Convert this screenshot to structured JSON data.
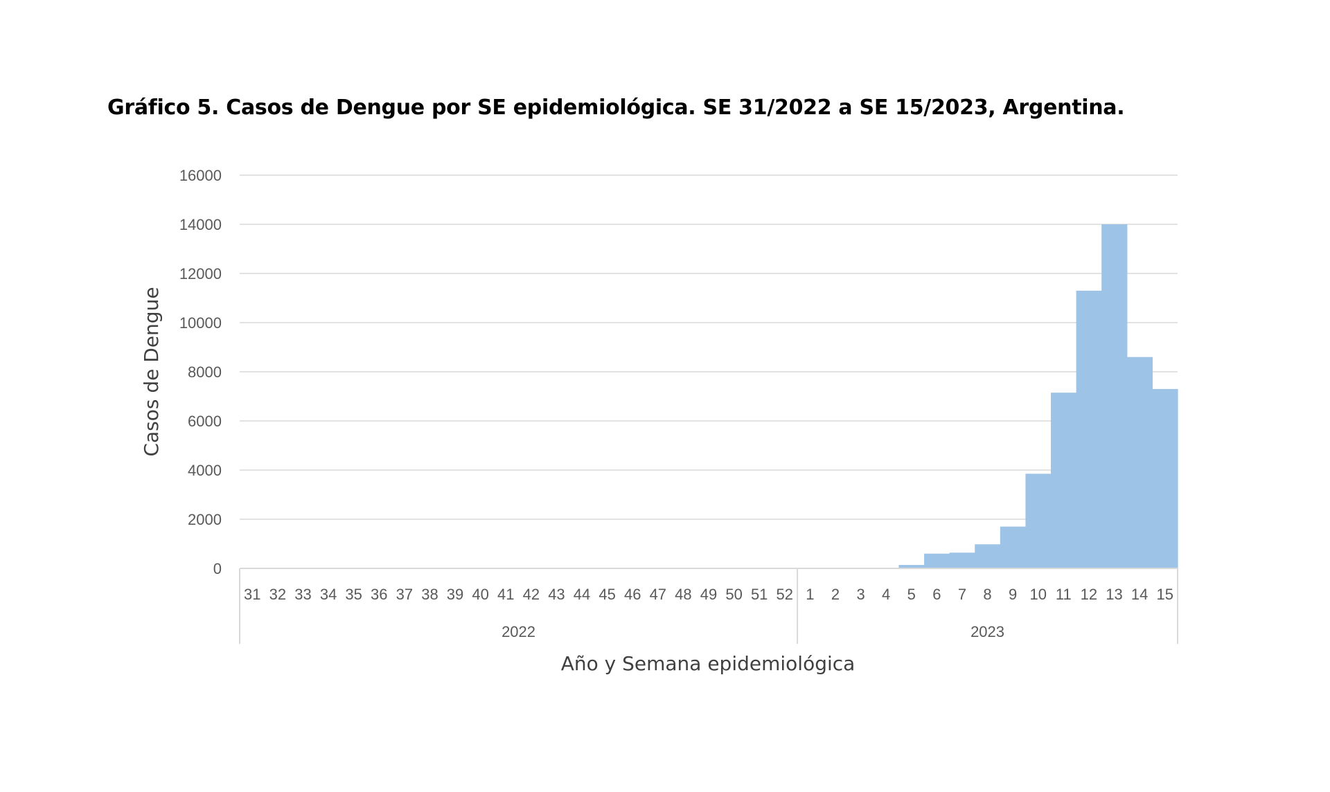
{
  "chart_data": {
    "type": "bar",
    "title": "Gráfico 5. Casos de Dengue por SE epidemiológica.  SE 31/2022 a SE 15/2023, Argentina.",
    "xlabel": "Año y Semana epidemiológica",
    "ylabel": "Casos de Dengue",
    "ylim": [
      0,
      16000
    ],
    "yticks": [
      "0",
      "2000",
      "4000",
      "6000",
      "8000",
      "10000",
      "12000",
      "14000",
      "16000"
    ],
    "grid": true,
    "bar_color": "#9dc3e6",
    "groups": [
      {
        "label": "2022",
        "categories": [
          "31",
          "32",
          "33",
          "34",
          "35",
          "36",
          "37",
          "38",
          "39",
          "40",
          "41",
          "42",
          "43",
          "44",
          "45",
          "46",
          "47",
          "48",
          "49",
          "50",
          "51",
          "52"
        ]
      },
      {
        "label": "2023",
        "categories": [
          "1",
          "2",
          "3",
          "4",
          "5",
          "6",
          "7",
          "8",
          "9",
          "10",
          "11",
          "12",
          "13",
          "14",
          "15"
        ]
      }
    ],
    "values": [
      0,
      0,
      0,
      0,
      0,
      0,
      0,
      0,
      0,
      0,
      0,
      0,
      0,
      0,
      0,
      0,
      0,
      0,
      0,
      0,
      0,
      0,
      0,
      0,
      0,
      20,
      140,
      600,
      640,
      980,
      1700,
      3850,
      7150,
      11300,
      14000,
      8600,
      7300
    ]
  }
}
